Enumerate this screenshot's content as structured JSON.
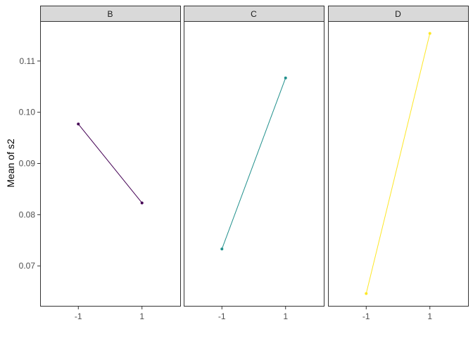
{
  "chart_data": {
    "type": "line",
    "ylabel": "Mean of s2",
    "xlabel": "",
    "x_categories": [
      "-1",
      "1"
    ],
    "yticks": [
      "0.07",
      "0.08",
      "0.09",
      "0.10",
      "0.11"
    ],
    "ylim": [
      0.0622,
      0.1178
    ],
    "grid": false,
    "legend": "none",
    "panels": [
      {
        "strip": "B",
        "color": "#440154",
        "values": [
          0.0977,
          0.0823
        ]
      },
      {
        "strip": "C",
        "color": "#21908C",
        "values": [
          0.0733,
          0.1067
        ]
      },
      {
        "strip": "D",
        "color": "#FDE725",
        "values": [
          0.0646,
          0.1154
        ]
      }
    ]
  }
}
